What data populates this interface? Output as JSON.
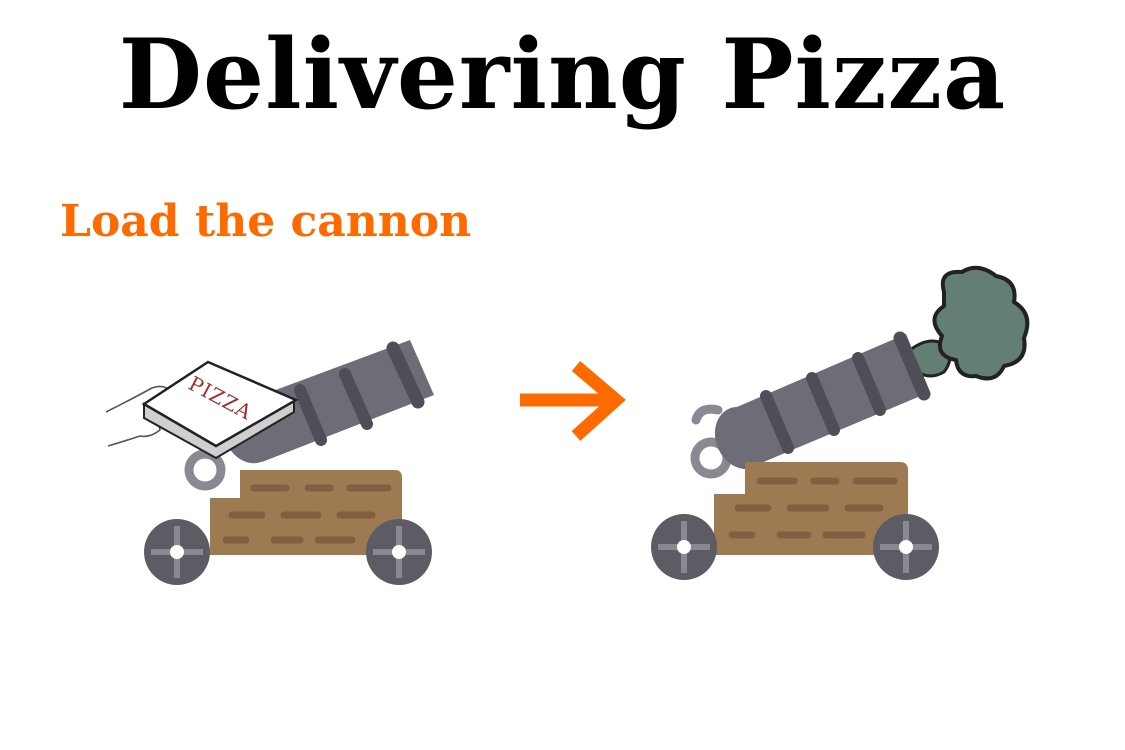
{
  "slide": {
    "title": "Delivering Pizza",
    "subtitle": "Load the cannon",
    "accent_color": "#ff6a00"
  },
  "illustration": {
    "pizza_box_label": "PIZZA",
    "icons": [
      "hand-icon",
      "pizza-box-icon",
      "cannon-icon",
      "arrow-right-icon",
      "smoke-puff-icon"
    ],
    "colors": {
      "barrel": "#6e6c76",
      "barrel_band": "#4f4d55",
      "carriage": "#9d7a52",
      "carriage_mark": "#7f6040",
      "wheel": "#5d5b63",
      "smoke": "#637e72",
      "box_label": "#a0302e"
    }
  }
}
